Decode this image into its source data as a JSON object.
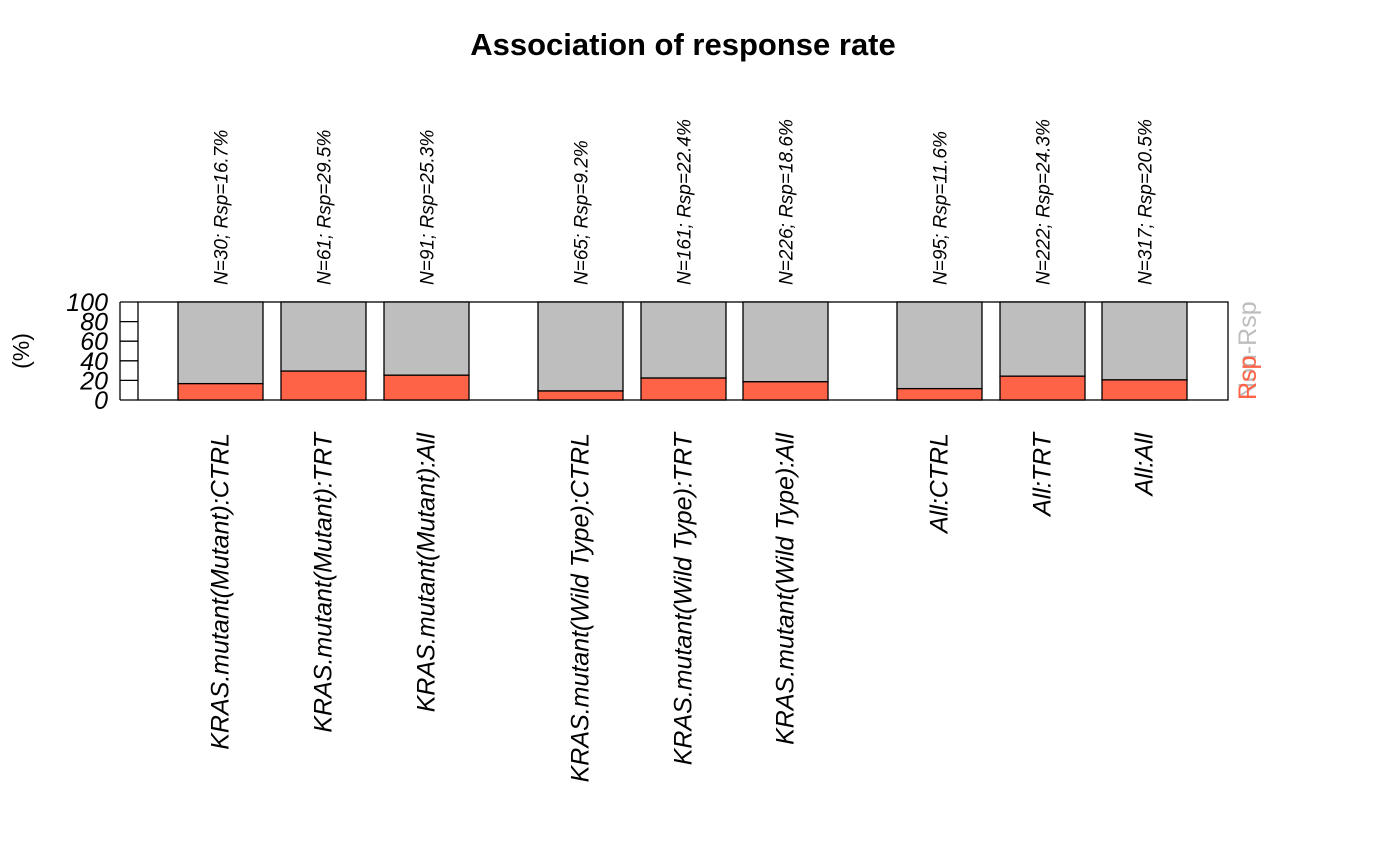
{
  "chart_data": {
    "type": "bar",
    "stacked": true,
    "percent": true,
    "title": "Association of response rate",
    "ylabel": "(%)",
    "ylim": [
      0,
      100
    ],
    "yticks": [
      0,
      20,
      40,
      60,
      80,
      100
    ],
    "groups": [
      {
        "categories": [
          "KRAS.mutant(Mutant):CTRL",
          "KRAS.mutant(Mutant):TRT",
          "KRAS.mutant(Mutant):All"
        ]
      },
      {
        "categories": [
          "KRAS.mutant(Wild Type):CTRL",
          "KRAS.mutant(Wild Type):TRT",
          "KRAS.mutant(Wild Type):All"
        ]
      },
      {
        "categories": [
          "All:CTRL",
          "All:TRT",
          "All:All"
        ]
      }
    ],
    "categories": [
      "KRAS.mutant(Mutant):CTRL",
      "KRAS.mutant(Mutant):TRT",
      "KRAS.mutant(Mutant):All",
      "KRAS.mutant(Wild Type):CTRL",
      "KRAS.mutant(Wild Type):TRT",
      "KRAS.mutant(Wild Type):All",
      "All:CTRL",
      "All:TRT",
      "All:All"
    ],
    "top_labels": [
      "N=30; Rsp=16.7%",
      "N=61; Rsp=29.5%",
      "N=91; Rsp=25.3%",
      "N=65; Rsp=9.2%",
      "N=161; Rsp=22.4%",
      "N=226; Rsp=18.6%",
      "N=95; Rsp=11.6%",
      "N=222; Rsp=24.3%",
      "N=317; Rsp=20.5%"
    ],
    "series": [
      {
        "name": "Rsp",
        "color": "#FF6347",
        "values": [
          16.7,
          29.5,
          25.3,
          9.2,
          22.4,
          18.6,
          11.6,
          24.3,
          20.5
        ]
      },
      {
        "name": "Non-Rsp",
        "color": "#BEBEBE",
        "values": [
          83.3,
          70.5,
          74.7,
          90.8,
          77.6,
          81.4,
          88.4,
          75.7,
          79.5
        ]
      }
    ],
    "legend": {
      "position": "right",
      "entries": [
        "Non-Rsp",
        "Rsp"
      ]
    }
  }
}
